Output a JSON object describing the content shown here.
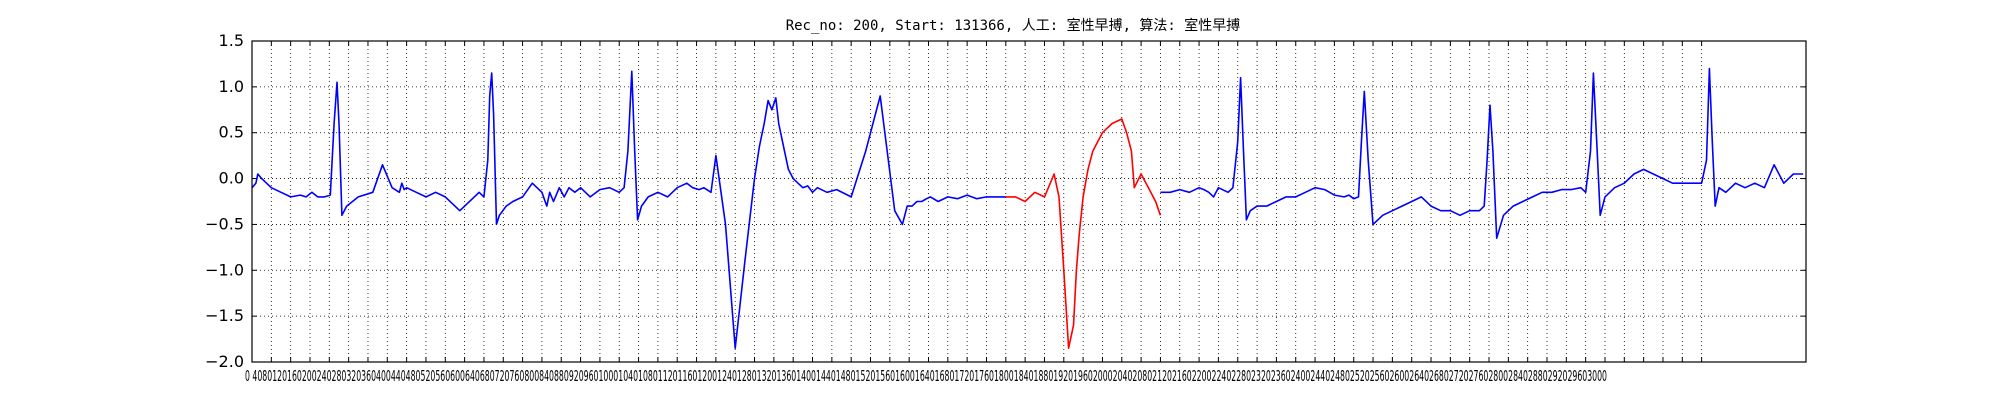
{
  "chart_data": {
    "type": "line",
    "title": "Rec_no: 200, Start: 131366, 人工: 室性早搏, 算法: 室性早搏",
    "xlabel": "",
    "ylabel": "",
    "xlim": [
      0,
      3216
    ],
    "ylim": [
      -2.0,
      1.5
    ],
    "grid": true,
    "grid_style": "dotted",
    "y_ticks": [
      -2.0,
      -1.5,
      -1.0,
      -0.5,
      0.0,
      0.5,
      1.0,
      1.5
    ],
    "y_tick_labels": [
      "−2.0",
      "−1.5",
      "−1.0",
      "−0.5",
      "0.0",
      "0.5",
      "1.0",
      "1.5"
    ],
    "x_tick_step": 40,
    "x_tick_label_text": "0 4080120160200240280320360400440480520560600640680720760800840880920960100010401080112011601200124012801320136014001440148015201560160016401680172017601800184018801920196020002040208021202160220022402280232023602400244024802520256026002640268027202760280028402880292029603000",
    "colors": {
      "ecg": "#0000ff",
      "highlight": "#ff0000",
      "grid": "#000000"
    },
    "series": [
      {
        "color": "#0000ff",
        "x": [
          0,
          8,
          12,
          20,
          40,
          60,
          80,
          100,
          112,
          124,
          136,
          150,
          162,
          170,
          176,
          180,
          186,
          196,
          220,
          250,
          270,
          290,
          305,
          310,
          315,
          320,
          340,
          360,
          380,
          400,
          430,
          460,
          470,
          480,
          488,
          492,
          496,
          500,
          506,
          512,
          526,
          540,
          560,
          580,
          600,
          610,
          616,
          624,
          636,
          646,
          656,
          668,
          680,
          700,
          720,
          740,
          760,
          770,
          778,
          786,
          792,
          798,
          806,
          820,
          840,
          860,
          880,
          900,
          912,
          925,
          935,
          950,
          960,
          980,
          1000,
          1020,
          1040,
          1050,
          1060,
          1068,
          1076,
          1084,
          1090,
          1096,
          1102,
          1110,
          1120,
          1130,
          1140,
          1150,
          1160,
          1170,
          1190,
          1210,
          1240,
          1270,
          1300,
          1330,
          1346,
          1356,
          1366,
          1376,
          1386,
          1396,
          1404,
          1420,
          1440,
          1460,
          1480,
          1500,
          1520,
          1540,
          1560
        ],
        "y": [
          -0.1,
          -0.05,
          0.05,
          0.0,
          -0.1,
          -0.15,
          -0.2,
          -0.18,
          -0.2,
          -0.15,
          -0.2,
          -0.2,
          -0.18,
          0.6,
          1.05,
          0.6,
          -0.4,
          -0.3,
          -0.2,
          -0.15,
          0.15,
          -0.1,
          -0.15,
          -0.05,
          -0.12,
          -0.1,
          -0.15,
          -0.2,
          -0.15,
          -0.2,
          -0.35,
          -0.2,
          -0.15,
          -0.2,
          0.2,
          0.9,
          1.15,
          0.7,
          -0.5,
          -0.4,
          -0.3,
          -0.25,
          -0.2,
          -0.05,
          -0.15,
          -0.3,
          -0.15,
          -0.25,
          -0.1,
          -0.2,
          -0.1,
          -0.15,
          -0.1,
          -0.2,
          -0.12,
          -0.1,
          -0.15,
          -0.1,
          0.3,
          1.17,
          0.3,
          -0.45,
          -0.3,
          -0.2,
          -0.15,
          -0.2,
          -0.1,
          -0.05,
          -0.1,
          -0.12,
          -0.1,
          -0.15,
          0.25,
          -0.5,
          -1.85,
          -0.9,
          0.0,
          0.35,
          0.6,
          0.85,
          0.75,
          0.88,
          0.6,
          0.45,
          0.3,
          0.1,
          0.0,
          -0.05,
          -0.1,
          -0.08,
          -0.15,
          -0.1,
          -0.15,
          -0.12,
          -0.2,
          0.3,
          0.9,
          -0.35,
          -0.5,
          -0.3,
          -0.3,
          -0.25,
          -0.25,
          -0.22,
          -0.2,
          -0.25,
          -0.2,
          -0.22,
          -0.18,
          -0.22,
          -0.2,
          -0.2,
          -0.2
        ]
      },
      {
        "color": "#ff0000",
        "x": [
          1560,
          1580,
          1600,
          1620,
          1640,
          1660,
          1670,
          1680,
          1690,
          1700,
          1706,
          1712,
          1720,
          1730,
          1740,
          1760,
          1780,
          1800,
          1810,
          1820,
          1826,
          1840,
          1860,
          1870,
          1880
        ],
        "y": [
          -0.2,
          -0.2,
          -0.25,
          -0.15,
          -0.2,
          0.05,
          -0.2,
          -1.0,
          -1.85,
          -1.6,
          -1.0,
          -0.6,
          -0.2,
          0.1,
          0.3,
          0.5,
          0.6,
          0.65,
          0.5,
          0.3,
          -0.1,
          0.05,
          -0.15,
          -0.25,
          -0.4
        ]
      },
      {
        "color": "#0000ff",
        "x": [
          1880,
          1900,
          1920,
          1940,
          1960,
          1970,
          1980,
          1990,
          2000,
          2020,
          2030,
          2040,
          2046,
          2052,
          2058,
          2066,
          2080,
          2100,
          2120,
          2140,
          2160,
          2180,
          2200,
          2220,
          2240,
          2260,
          2270,
          2280,
          2290,
          2296,
          2302,
          2310,
          2320,
          2340,
          2360,
          2380,
          2400,
          2420,
          2440,
          2460,
          2480,
          2500,
          2520,
          2540,
          2550,
          2556,
          2562,
          2568,
          2576,
          2590,
          2610,
          2630,
          2650,
          2670,
          2690,
          2710,
          2730,
          2750,
          2760,
          2770,
          2776,
          2782,
          2790,
          2800,
          2820,
          2840,
          2860,
          2880,
          2900,
          2920,
          2940,
          2960,
          2980,
          3000,
          3010,
          3016,
          3022,
          3028,
          3036,
          3050,
          3070,
          3090,
          3110,
          3130,
          3150,
          3170,
          3190,
          3210
        ],
        "y": [
          -0.15,
          -0.15,
          -0.12,
          -0.15,
          -0.1,
          -0.12,
          -0.15,
          -0.2,
          -0.1,
          -0.15,
          -0.1,
          0.4,
          1.1,
          0.3,
          -0.45,
          -0.35,
          -0.3,
          -0.3,
          -0.25,
          -0.2,
          -0.2,
          -0.15,
          -0.1,
          -0.12,
          -0.18,
          -0.2,
          -0.18,
          -0.22,
          -0.2,
          0.4,
          0.95,
          0.2,
          -0.5,
          -0.4,
          -0.35,
          -0.3,
          -0.25,
          -0.2,
          -0.3,
          -0.35,
          -0.35,
          -0.4,
          -0.35,
          -0.35,
          -0.3,
          0.2,
          0.8,
          0.3,
          -0.65,
          -0.4,
          -0.3,
          -0.25,
          -0.2,
          -0.15,
          -0.15,
          -0.12,
          -0.12,
          -0.1,
          -0.15,
          0.3,
          1.15,
          0.5,
          -0.4,
          -0.2,
          -0.1,
          -0.05,
          0.05,
          0.1,
          0.05,
          0.0,
          -0.05,
          -0.05,
          -0.05,
          -0.05,
          0.2,
          1.2,
          0.4,
          -0.3,
          -0.1,
          -0.15,
          -0.05,
          -0.1,
          -0.05,
          -0.1,
          0.15,
          -0.05,
          0.05,
          0.05
        ]
      }
    ]
  }
}
